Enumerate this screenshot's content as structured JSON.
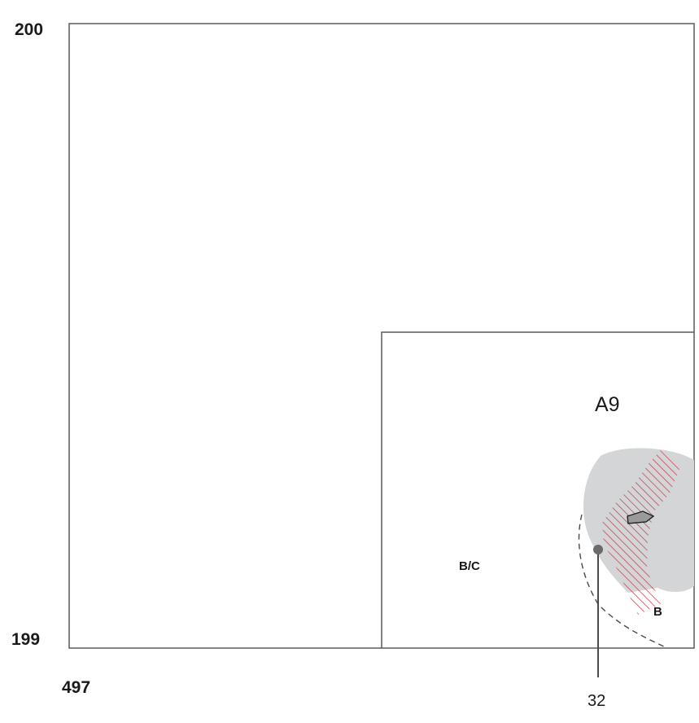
{
  "diagram": {
    "labels": {
      "north_coord": "200",
      "south_coord": "199",
      "west_coord": "497",
      "area_label": "A9",
      "zone_bc": "B/C",
      "zone_b": "B",
      "point_label": "32"
    },
    "colors": {
      "frame": "#5a5a5a",
      "gray_area": "#d3d5d7",
      "hatch_red": "#c24b55",
      "dashed_line": "#4a4a4a",
      "point": "#6a6a6a",
      "small_polygon_fill": "#9a9a9a"
    }
  }
}
